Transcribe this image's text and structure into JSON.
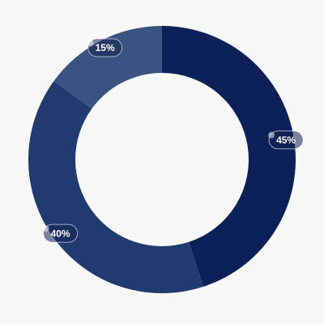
{
  "chart_data": {
    "type": "donut",
    "values": [
      45,
      40,
      15
    ],
    "value_labels": [
      "45%",
      "40%",
      "15%"
    ],
    "colors": [
      "#0b2157",
      "#213a70",
      "#3a5383"
    ]
  }
}
